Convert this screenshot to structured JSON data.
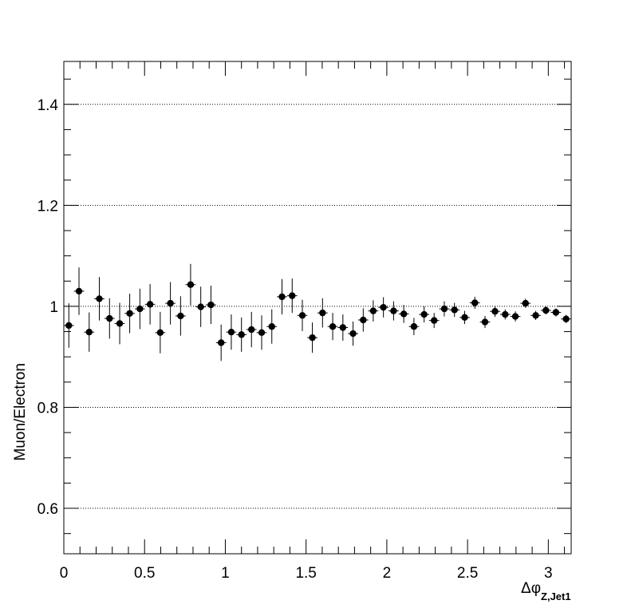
{
  "chart_data": {
    "type": "scatter",
    "title": "",
    "xlabel": "Δφ",
    "xlabel_subscript": "Z,Jet1",
    "ylabel": "Muon/Electron",
    "xlim": [
      0,
      3.1416
    ],
    "ylim": [
      0.51,
      1.485
    ],
    "x_ticks": [
      0,
      0.5,
      1,
      1.5,
      2,
      2.5,
      3
    ],
    "x_tick_labels": [
      "0",
      "0.5",
      "1",
      "1.5",
      "2",
      "2.5",
      "3"
    ],
    "y_ticks": [
      0.6,
      0.8,
      1.0,
      1.2,
      1.4
    ],
    "y_tick_labels": [
      "0.6",
      "0.8",
      "1",
      "1.2",
      "1.4"
    ],
    "grid": "horizontal dotted at major y ticks",
    "marker_color": "#000000",
    "series": [
      {
        "x": [
          0.031,
          0.094,
          0.157,
          0.22,
          0.283,
          0.346,
          0.408,
          0.471,
          0.534,
          0.597,
          0.66,
          0.723,
          0.785,
          0.848,
          0.911,
          0.974,
          1.037,
          1.1,
          1.162,
          1.225,
          1.288,
          1.351,
          1.414,
          1.477,
          1.539,
          1.602,
          1.665,
          1.728,
          1.791,
          1.854,
          1.916,
          1.979,
          2.042,
          2.105,
          2.168,
          2.231,
          2.293,
          2.356,
          2.419,
          2.482,
          2.545,
          2.608,
          2.67,
          2.733,
          2.796,
          2.859,
          2.922,
          2.985,
          3.047,
          3.11
        ],
        "y": [
          0.962,
          1.03,
          0.949,
          1.015,
          0.976,
          0.966,
          0.986,
          0.995,
          1.004,
          0.948,
          1.006,
          0.981,
          1.043,
          0.999,
          1.003,
          0.928,
          0.949,
          0.944,
          0.954,
          0.948,
          0.96,
          1.019,
          1.021,
          0.982,
          0.938,
          0.987,
          0.96,
          0.958,
          0.946,
          0.973,
          0.991,
          0.998,
          0.991,
          0.985,
          0.96,
          0.984,
          0.972,
          0.995,
          0.993,
          0.978,
          1.007,
          0.969,
          0.99,
          0.984,
          0.98,
          1.006,
          0.982,
          0.992,
          0.988,
          0.975
        ],
        "yerr": [
          0.044,
          0.047,
          0.039,
          0.043,
          0.04,
          0.041,
          0.039,
          0.04,
          0.04,
          0.041,
          0.042,
          0.039,
          0.041,
          0.04,
          0.038,
          0.036,
          0.035,
          0.034,
          0.035,
          0.034,
          0.034,
          0.035,
          0.034,
          0.031,
          0.03,
          0.029,
          0.027,
          0.026,
          0.024,
          0.023,
          0.021,
          0.02,
          0.019,
          0.018,
          0.017,
          0.016,
          0.015,
          0.015,
          0.014,
          0.013,
          0.012,
          0.012,
          0.011,
          0.01,
          0.01,
          0.009,
          0.009,
          0.008,
          0.008,
          0.008
        ]
      }
    ]
  }
}
